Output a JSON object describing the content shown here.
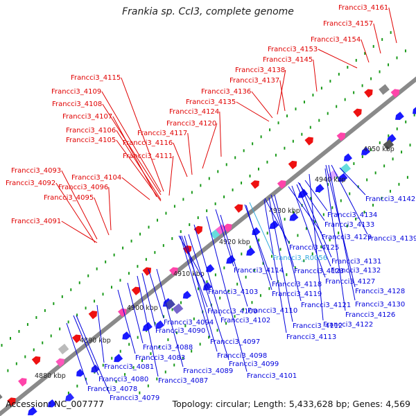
{
  "title": "Frankia sp. CcI3, complete genome",
  "footer": {
    "accession": "Accession: NC_007777",
    "summary": "Topology: circular; Length: 5,433,628 bp; Genes: 4,569"
  },
  "colors": {
    "forward_label": "#e00000",
    "reverse_label": "#0000dd",
    "rna_label": "#33aadd",
    "backbone": "#888888",
    "tick": "#1a9a1a"
  },
  "scale_labels": [
    "4880 kbp",
    "4890 kbp",
    "4900 kbp",
    "4910 kbp",
    "4920 kbp",
    "4930 kbp",
    "4940 kbp",
    "4950 kbp"
  ],
  "forward_genes": [
    "Francci3_4161",
    "Francci3_4157",
    "Francci3_4154",
    "Francci3_4153",
    "Francci3_4145",
    "Francci3_4138",
    "Francci3_4137",
    "Francci3_4136",
    "Francci3_4135",
    "Francci3_4124",
    "Francci3_4120",
    "Francci3_4117",
    "Francci3_4116",
    "Francci3_4115",
    "Francci3_4111",
    "Francci3_4109",
    "Francci3_4108",
    "Francci3_4107",
    "Francci3_4106",
    "Francci3_4105",
    "Francci3_4104",
    "Francci3_4096",
    "Francci3_4095",
    "Francci3_4093",
    "Francci3_4092",
    "Francci3_4091"
  ],
  "reverse_genes": [
    "Francci3_4142",
    "Francci3_4134",
    "Francci3_4133",
    "Francci3_4139",
    "Francci3_4129",
    "Francci3_4125",
    "Francci3_R0056",
    "Francci3_4131",
    "Francci3_4132",
    "Francci3_4114",
    "Francci3_4123",
    "Francci3_4127",
    "Francci3_4118",
    "Francci3_4128",
    "Francci3_4119",
    "Francci3_4103",
    "Francci3_4130",
    "Francci3_4121",
    "Francci3_4100",
    "Francci3_4110",
    "Francci3_4126",
    "Francci3_4102",
    "Francci3_4094",
    "Francci3_4122",
    "Francci3_4112",
    "Francci3_4090",
    "Francci3_4113",
    "Francci3_4088",
    "Francci3_4097",
    "Francci3_4083",
    "Francci3_4098",
    "Francci3_4099",
    "Francci3_4081",
    "Francci3_4089",
    "Francci3_4101",
    "Francci3_4080",
    "Francci3_4087",
    "Francci3_4078",
    "Francci3_4079"
  ]
}
